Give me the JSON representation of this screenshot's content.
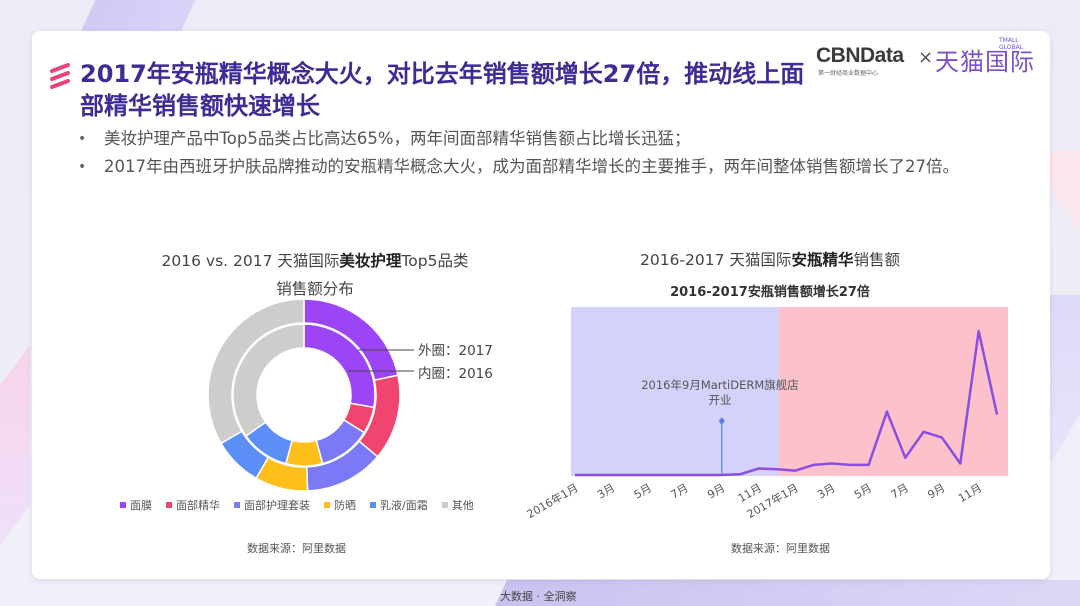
{
  "header": {
    "title": "2017年安瓶精华概念大火，对比去年销售额增长27倍，推动线上面部精华销售额快速增长",
    "logo": {
      "cbn": "CBNData",
      "cbn_sub": "第一财经商业数据中心",
      "times": "×",
      "tmall": "天猫国际",
      "tmall_sub": "TMALL GLOBAL"
    }
  },
  "bullets": [
    "美妆护理产品中Top5品类占比高达65%，两年间面部精华销售额占比增长迅猛；",
    "2017年由西班牙护肤品牌推动的安瓶精华概念大火，成为面部精华增长的主要推手，两年间整体销售额增长了27倍。"
  ],
  "left_chart": {
    "title_pre": "2016 vs. 2017 天猫国际",
    "title_bold": "美妆护理",
    "title_post": "Top5品类",
    "title_line2": "销售额分布",
    "outer_label": "外圈：2017",
    "inner_label": "内圈：2016",
    "source": "数据来源：阿里数据"
  },
  "right_chart": {
    "title_pre": "2016-2017 天猫国际",
    "title_bold": "安瓶精华",
    "title_post": "销售额",
    "subtitle": "2016-2017安瓶销售额增长27倍",
    "annotation": "2016年9月MartiDERM旗舰店开业",
    "source": "数据来源：阿里数据"
  },
  "footer": "大数据 · 全洞察",
  "colors": {
    "title": "#3f2b94",
    "accent_pink": "#e6457a",
    "line": "#8a4fe0",
    "bg_2016": "#d4d2fb",
    "bg_2017": "#fcc1cb"
  },
  "chart_data": [
    {
      "type": "pie",
      "title": "2016 vs. 2017 天猫国际美妆护理Top5品类销售额分布",
      "categories": [
        "面膜",
        "面部精华",
        "面部护理套装",
        "防晒",
        "乳液/面霜",
        "其他"
      ],
      "colors": [
        "#9b45f7",
        "#f0456f",
        "#7b79f5",
        "#ffbf1a",
        "#5b8ef7",
        "#cfcccc"
      ],
      "series": [
        {
          "name": "外圈：2017",
          "values": [
            21.7,
            14.4,
            13.3,
            8.9,
            8.3,
            33.4
          ]
        },
        {
          "name": "内圈：2016",
          "values": [
            27.8,
            6.1,
            11.9,
            8.3,
            11.1,
            34.8
          ]
        }
      ],
      "legend_position": "bottom",
      "annotations": [
        "外圈：2017",
        "内圈：2016"
      ]
    },
    {
      "type": "line",
      "title": "2016-2017 天猫国际安瓶精华销售额",
      "subtitle": "2016-2017安瓶销售额增长27倍",
      "x": [
        "2016年1月",
        "2月",
        "3月",
        "4月",
        "5月",
        "6月",
        "7月",
        "8月",
        "9月",
        "10月",
        "11月",
        "12月",
        "2017年1月",
        "2月",
        "3月",
        "4月",
        "5月",
        "6月",
        "7月",
        "8月",
        "9月",
        "10月",
        "11月",
        "12月"
      ],
      "tick_labels": [
        "2016年1月",
        "3月",
        "5月",
        "7月",
        "9月",
        "11月",
        "2017年1月",
        "3月",
        "5月",
        "7月",
        "9月",
        "11月"
      ],
      "series": [
        {
          "name": "销售额",
          "values": [
            0,
            0,
            0,
            0,
            0,
            0,
            0,
            0,
            0,
            0.5,
            4.5,
            4,
            3,
            7,
            8,
            7,
            7,
            44,
            12,
            30,
            26,
            8,
            100,
            42
          ]
        }
      ],
      "ylim": [
        0,
        110
      ],
      "grid": false,
      "shaded_regions": [
        {
          "label": "2016",
          "from": "2016年1月",
          "to": "2016年12月",
          "color": "#d4d2fb"
        },
        {
          "label": "2017",
          "from": "2017年1月",
          "to": "2017年12月",
          "color": "#fcc1cb"
        }
      ],
      "annotations": [
        {
          "x": "2016年9月",
          "text": "2016年9月MartiDERM旗舰店开业"
        }
      ]
    }
  ]
}
